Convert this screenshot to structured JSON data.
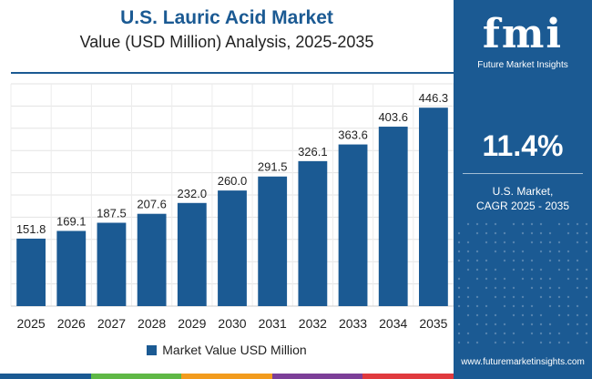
{
  "chart_data": {
    "type": "bar",
    "title": "U.S. Lauric Acid Market",
    "subtitle": "Value (USD Million) Analysis, 2025-2035",
    "categories": [
      "2025",
      "2026",
      "2027",
      "2028",
      "2029",
      "2030",
      "2031",
      "2032",
      "2033",
      "2034",
      "2035"
    ],
    "series": [
      {
        "name": "Market Value USD Million",
        "values": [
          151.8,
          169.1,
          187.5,
          207.6,
          232.0,
          260.0,
          291.5,
          326.1,
          363.6,
          403.6,
          446.3
        ],
        "labels": [
          "151.8",
          "169.1",
          "187.5",
          "207.6",
          "232.0",
          "260.0",
          "291.5",
          "326.1",
          "363.6",
          "403.6",
          "446.3"
        ]
      }
    ],
    "ylim": [
      0,
      500
    ],
    "grid": true,
    "legend_position": "bottom",
    "bar_color": "#1b5a93"
  },
  "side_panel": {
    "logo_mark": "fmi",
    "logo_caption": "Future Market Insights",
    "cagr_value": "11.4%",
    "cagr_label_line1": "U.S. Market,",
    "cagr_label_line2": "CAGR 2025 - 2035",
    "url": "www.futuremarketinsights.com",
    "background_color": "#1b5a93"
  },
  "bottom_bar_colors": [
    "#1b5a93",
    "#5fb846",
    "#f29b1d",
    "#7c3f98",
    "#e03a3e"
  ]
}
